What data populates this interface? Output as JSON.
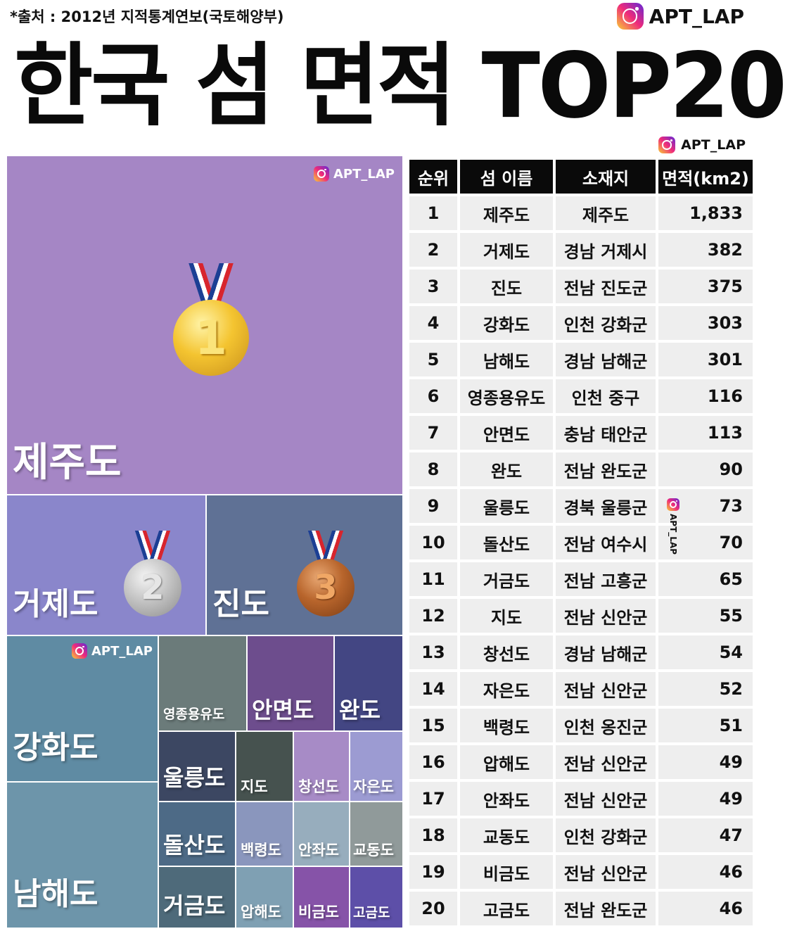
{
  "header": {
    "source": "*출처 : 2012년 지적통계연보(국토해양부)",
    "brand": "APT_LAP",
    "title": "한국 섬 면적 TOP20",
    "brand_small": "APT_LAP"
  },
  "treemap": {
    "watermark": "APT_LAP",
    "tiles": [
      {
        "label": "제주도",
        "color": "#a586c5",
        "medal": "1"
      },
      {
        "label": "거제도",
        "color": "#8a86cb",
        "medal": "2"
      },
      {
        "label": "진도",
        "color": "#5f7195",
        "medal": "3"
      },
      {
        "label": "강화도",
        "color": "#5f8ba3"
      },
      {
        "label": "남해도",
        "color": "#6d95aa"
      },
      {
        "label": "영종용유도",
        "color": "#6b7b7a"
      },
      {
        "label": "안면도",
        "color": "#6d4d8d"
      },
      {
        "label": "완도",
        "color": "#434683"
      },
      {
        "label": "울릉도",
        "color": "#3c4762"
      },
      {
        "label": "지도",
        "color": "#46524f"
      },
      {
        "label": "창선도",
        "color": "#a78bc6"
      },
      {
        "label": "자은도",
        "color": "#9c9bd2"
      },
      {
        "label": "돌산도",
        "color": "#4d6a86"
      },
      {
        "label": "백령도",
        "color": "#8a96bd"
      },
      {
        "label": "안좌도",
        "color": "#97adbd"
      },
      {
        "label": "교동도",
        "color": "#909a9a"
      },
      {
        "label": "거금도",
        "color": "#4e6a7a"
      },
      {
        "label": "압해도",
        "color": "#7fa0b3"
      },
      {
        "label": "비금도",
        "color": "#8653a8"
      },
      {
        "label": "고금도",
        "color": "#5d4fa8"
      }
    ]
  },
  "table": {
    "headers": [
      "순위",
      "섬 이름",
      "소재지",
      "면적(km2)"
    ],
    "rows": [
      [
        "1",
        "제주도",
        "제주도",
        "1,833"
      ],
      [
        "2",
        "거제도",
        "경남 거제시",
        "382"
      ],
      [
        "3",
        "진도",
        "전남 진도군",
        "375"
      ],
      [
        "4",
        "강화도",
        "인천 강화군",
        "303"
      ],
      [
        "5",
        "남해도",
        "경남 남해군",
        "301"
      ],
      [
        "6",
        "영종용유도",
        "인천 중구",
        "116"
      ],
      [
        "7",
        "안면도",
        "충남 태안군",
        "113"
      ],
      [
        "8",
        "완도",
        "전남 완도군",
        "90"
      ],
      [
        "9",
        "울릉도",
        "경북 울릉군",
        "73"
      ],
      [
        "10",
        "돌산도",
        "전남 여수시",
        "70"
      ],
      [
        "11",
        "거금도",
        "전남 고흥군",
        "65"
      ],
      [
        "12",
        "지도",
        "전남 신안군",
        "55"
      ],
      [
        "13",
        "창선도",
        "경남 남해군",
        "54"
      ],
      [
        "14",
        "자은도",
        "전남 신안군",
        "52"
      ],
      [
        "15",
        "백령도",
        "인천 옹진군",
        "51"
      ],
      [
        "16",
        "압해도",
        "전남 신안군",
        "49"
      ],
      [
        "17",
        "안좌도",
        "전남 신안군",
        "49"
      ],
      [
        "18",
        "교동도",
        "인천 강화군",
        "47"
      ],
      [
        "19",
        "비금도",
        "전남 신안군",
        "46"
      ],
      [
        "20",
        "고금도",
        "전남 완도군",
        "46"
      ]
    ],
    "watermark": "APT_LAP"
  },
  "chart_data": {
    "type": "treemap",
    "title": "한국 섬 면적 TOP20",
    "unit": "km2",
    "categories": [
      "제주도",
      "거제도",
      "진도",
      "강화도",
      "남해도",
      "영종용유도",
      "안면도",
      "완도",
      "울릉도",
      "돌산도",
      "거금도",
      "지도",
      "창선도",
      "자은도",
      "백령도",
      "압해도",
      "안좌도",
      "교동도",
      "비금도",
      "고금도"
    ],
    "values": [
      1833,
      382,
      375,
      303,
      301,
      116,
      113,
      90,
      73,
      70,
      65,
      55,
      54,
      52,
      51,
      49,
      49,
      47,
      46,
      46
    ]
  }
}
